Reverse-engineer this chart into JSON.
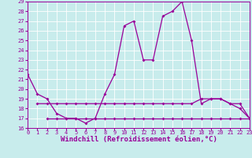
{
  "xlabel": "Windchill (Refroidissement éolien,°C)",
  "background_color": "#c8ecec",
  "grid_color": "#ffffff",
  "line_color": "#990099",
  "x_main": [
    0,
    1,
    2,
    3,
    4,
    5,
    6,
    7,
    8,
    9,
    10,
    11,
    12,
    13,
    14,
    15,
    16,
    17,
    18,
    19,
    20,
    21,
    22,
    23
  ],
  "y_main": [
    21.5,
    19.5,
    19.0,
    17.5,
    17.0,
    17.0,
    16.5,
    17.0,
    19.5,
    21.5,
    26.5,
    27.0,
    23.0,
    23.0,
    27.5,
    28.0,
    29.0,
    25.0,
    18.5,
    19.0,
    19.0,
    18.5,
    18.0,
    17.0
  ],
  "x_flat1": [
    1,
    2,
    3,
    4,
    5,
    6,
    7,
    8,
    9,
    10,
    11,
    12,
    13,
    14,
    15,
    16,
    17,
    18,
    19,
    20,
    21,
    22,
    23
  ],
  "y_flat1": [
    18.5,
    18.5,
    18.5,
    18.5,
    18.5,
    18.5,
    18.5,
    18.5,
    18.5,
    18.5,
    18.5,
    18.5,
    18.5,
    18.5,
    18.5,
    18.5,
    18.5,
    19.0,
    19.0,
    19.0,
    18.5,
    18.5,
    17.0
  ],
  "x_flat2": [
    2,
    3,
    4,
    5,
    6,
    7,
    8,
    9,
    10,
    11,
    12,
    13,
    14,
    15,
    16,
    17,
    18,
    19,
    20,
    21,
    22,
    23
  ],
  "y_flat2": [
    17.0,
    17.0,
    17.0,
    17.0,
    17.0,
    17.0,
    17.0,
    17.0,
    17.0,
    17.0,
    17.0,
    17.0,
    17.0,
    17.0,
    17.0,
    17.0,
    17.0,
    17.0,
    17.0,
    17.0,
    17.0,
    17.0
  ],
  "ylim": [
    16,
    29
  ],
  "xlim": [
    0,
    23
  ],
  "yticks": [
    16,
    17,
    18,
    19,
    20,
    21,
    22,
    23,
    24,
    25,
    26,
    27,
    28,
    29
  ],
  "xticks": [
    0,
    1,
    2,
    3,
    4,
    5,
    6,
    7,
    8,
    9,
    10,
    11,
    12,
    13,
    14,
    15,
    16,
    17,
    18,
    19,
    20,
    21,
    22,
    23
  ],
  "marker": "D",
  "markersize": 2,
  "linewidth": 0.9,
  "tick_fontsize": 5,
  "xlabel_fontsize": 6.5,
  "xlabel_fontweight": "bold"
}
